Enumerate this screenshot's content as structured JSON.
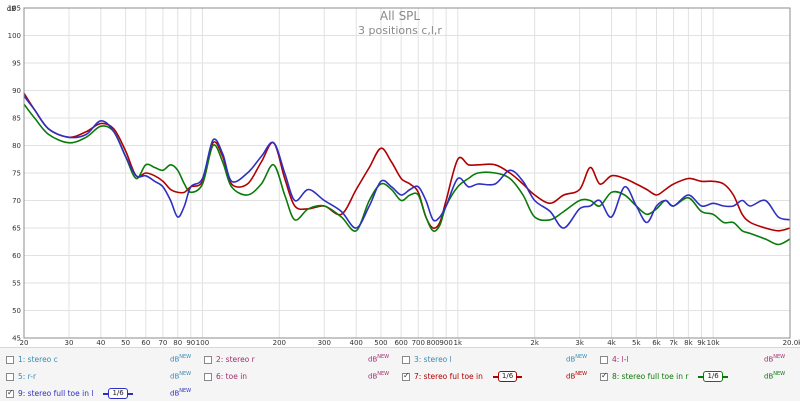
{
  "chart_data": {
    "type": "line",
    "title": "All SPL",
    "subtitle": "3 positions c,l,r",
    "ylabel": "dB",
    "xlabel_unit": "Hz",
    "x_scale": "log",
    "xlim": [
      20,
      20000
    ],
    "ylim": [
      45,
      105
    ],
    "y_ticks": [
      45,
      50,
      55,
      60,
      65,
      70,
      75,
      80,
      85,
      90,
      95,
      100,
      105
    ],
    "x_ticks": [
      {
        "v": 20,
        "label": "20"
      },
      {
        "v": 30,
        "label": "30"
      },
      {
        "v": 40,
        "label": "40"
      },
      {
        "v": 50,
        "label": "50"
      },
      {
        "v": 60,
        "label": "60"
      },
      {
        "v": 70,
        "label": "70"
      },
      {
        "v": 80,
        "label": "80"
      },
      {
        "v": 90,
        "label": "90"
      },
      {
        "v": 100,
        "label": "100"
      },
      {
        "v": 200,
        "label": "200"
      },
      {
        "v": 300,
        "label": "300"
      },
      {
        "v": 400,
        "label": "400"
      },
      {
        "v": 500,
        "label": "500"
      },
      {
        "v": 600,
        "label": "600"
      },
      {
        "v": 700,
        "label": "700"
      },
      {
        "v": 800,
        "label": "800"
      },
      {
        "v": 900,
        "label": "900"
      },
      {
        "v": 1000,
        "label": "1k"
      },
      {
        "v": 2000,
        "label": "2k"
      },
      {
        "v": 3000,
        "label": "3k"
      },
      {
        "v": 4000,
        "label": "4k"
      },
      {
        "v": 5000,
        "label": "5k"
      },
      {
        "v": 6000,
        "label": "6k"
      },
      {
        "v": 7000,
        "label": "7k"
      },
      {
        "v": 8000,
        "label": "8k"
      },
      {
        "v": 9000,
        "label": "9k"
      },
      {
        "v": 10000,
        "label": "10k"
      },
      {
        "v": 20000,
        "label": "20.0k Hz"
      }
    ],
    "grid": true,
    "series": [
      {
        "name": "7: stereo ful toe in",
        "color": "#b00000",
        "points": [
          [
            20,
            89.5
          ],
          [
            22,
            86.5
          ],
          [
            25,
            83
          ],
          [
            30,
            81.5
          ],
          [
            35,
            82.5
          ],
          [
            40,
            84
          ],
          [
            45,
            83
          ],
          [
            50,
            79
          ],
          [
            55,
            74.5
          ],
          [
            60,
            75
          ],
          [
            65,
            74.5
          ],
          [
            70,
            73.5
          ],
          [
            75,
            72
          ],
          [
            80,
            71.5
          ],
          [
            85,
            71.5
          ],
          [
            90,
            72.5
          ],
          [
            100,
            73.5
          ],
          [
            110,
            80.5
          ],
          [
            120,
            78
          ],
          [
            130,
            73
          ],
          [
            150,
            73
          ],
          [
            170,
            77
          ],
          [
            190,
            80.5
          ],
          [
            210,
            74
          ],
          [
            230,
            69
          ],
          [
            260,
            68.5
          ],
          [
            300,
            69
          ],
          [
            350,
            67.5
          ],
          [
            400,
            72
          ],
          [
            450,
            76
          ],
          [
            500,
            79.5
          ],
          [
            550,
            77
          ],
          [
            600,
            74
          ],
          [
            650,
            73
          ],
          [
            700,
            71.5
          ],
          [
            750,
            67
          ],
          [
            800,
            65
          ],
          [
            850,
            66
          ],
          [
            900,
            70
          ],
          [
            1000,
            77.5
          ],
          [
            1100,
            76.5
          ],
          [
            1200,
            76.5
          ],
          [
            1400,
            76.5
          ],
          [
            1600,
            75
          ],
          [
            1800,
            73
          ],
          [
            2000,
            71
          ],
          [
            2300,
            69.5
          ],
          [
            2600,
            71
          ],
          [
            3000,
            72
          ],
          [
            3300,
            76
          ],
          [
            3600,
            73
          ],
          [
            4000,
            74.5
          ],
          [
            4500,
            74
          ],
          [
            5000,
            73
          ],
          [
            5500,
            72
          ],
          [
            6000,
            71
          ],
          [
            6500,
            72
          ],
          [
            7000,
            73
          ],
          [
            8000,
            74
          ],
          [
            9000,
            73.5
          ],
          [
            10000,
            73.5
          ],
          [
            11000,
            73
          ],
          [
            12000,
            71
          ],
          [
            13000,
            67.5
          ],
          [
            14000,
            66
          ],
          [
            16000,
            65
          ],
          [
            18000,
            64.5
          ],
          [
            20000,
            65
          ]
        ]
      },
      {
        "name": "8: stereo full toe in r",
        "color": "#0a7a0a",
        "points": [
          [
            20,
            87.5
          ],
          [
            22,
            85
          ],
          [
            25,
            82
          ],
          [
            30,
            80.5
          ],
          [
            35,
            81.5
          ],
          [
            40,
            83.5
          ],
          [
            45,
            82.5
          ],
          [
            50,
            78
          ],
          [
            55,
            74
          ],
          [
            60,
            76.5
          ],
          [
            65,
            76
          ],
          [
            70,
            75.5
          ],
          [
            75,
            76.5
          ],
          [
            80,
            75.5
          ],
          [
            85,
            73
          ],
          [
            90,
            71.5
          ],
          [
            100,
            73
          ],
          [
            110,
            80
          ],
          [
            120,
            77
          ],
          [
            130,
            72.5
          ],
          [
            150,
            71
          ],
          [
            170,
            73
          ],
          [
            190,
            76.5
          ],
          [
            210,
            71
          ],
          [
            230,
            66.5
          ],
          [
            260,
            68.5
          ],
          [
            300,
            69
          ],
          [
            350,
            67
          ],
          [
            400,
            64.5
          ],
          [
            450,
            70
          ],
          [
            500,
            73
          ],
          [
            550,
            72
          ],
          [
            600,
            70
          ],
          [
            650,
            71
          ],
          [
            700,
            71
          ],
          [
            750,
            67
          ],
          [
            800,
            64.5
          ],
          [
            850,
            65.5
          ],
          [
            900,
            69
          ],
          [
            1000,
            72.5
          ],
          [
            1100,
            74
          ],
          [
            1200,
            75
          ],
          [
            1400,
            75
          ],
          [
            1600,
            74
          ],
          [
            1800,
            71
          ],
          [
            2000,
            67
          ],
          [
            2300,
            66.5
          ],
          [
            2600,
            68
          ],
          [
            3000,
            70
          ],
          [
            3300,
            70
          ],
          [
            3600,
            69
          ],
          [
            4000,
            71.5
          ],
          [
            4500,
            71
          ],
          [
            5000,
            69
          ],
          [
            5500,
            67.5
          ],
          [
            6000,
            68.5
          ],
          [
            6500,
            70
          ],
          [
            7000,
            69
          ],
          [
            8000,
            70.5
          ],
          [
            9000,
            68
          ],
          [
            10000,
            67.5
          ],
          [
            11000,
            66
          ],
          [
            12000,
            66
          ],
          [
            13000,
            64.5
          ],
          [
            14000,
            64
          ],
          [
            16000,
            63
          ],
          [
            18000,
            62
          ],
          [
            20000,
            63
          ]
        ]
      },
      {
        "name": "9: stereo full toe in l",
        "color": "#3030c0",
        "points": [
          [
            20,
            89
          ],
          [
            22,
            86.5
          ],
          [
            25,
            83
          ],
          [
            30,
            81.5
          ],
          [
            35,
            82
          ],
          [
            40,
            84.5
          ],
          [
            45,
            82.5
          ],
          [
            50,
            78
          ],
          [
            55,
            74.5
          ],
          [
            60,
            74.5
          ],
          [
            65,
            73.5
          ],
          [
            70,
            72.5
          ],
          [
            75,
            70
          ],
          [
            80,
            67
          ],
          [
            85,
            69
          ],
          [
            90,
            72.5
          ],
          [
            100,
            74
          ],
          [
            110,
            81
          ],
          [
            120,
            78.5
          ],
          [
            130,
            73.5
          ],
          [
            150,
            75
          ],
          [
            170,
            78
          ],
          [
            190,
            80.5
          ],
          [
            210,
            75
          ],
          [
            230,
            70
          ],
          [
            260,
            72
          ],
          [
            300,
            70
          ],
          [
            350,
            68
          ],
          [
            400,
            65
          ],
          [
            450,
            69
          ],
          [
            500,
            73.5
          ],
          [
            550,
            72.5
          ],
          [
            600,
            71
          ],
          [
            650,
            72
          ],
          [
            700,
            72.5
          ],
          [
            750,
            70
          ],
          [
            800,
            66.5
          ],
          [
            850,
            67
          ],
          [
            900,
            69
          ],
          [
            1000,
            74
          ],
          [
            1100,
            72.5
          ],
          [
            1200,
            73
          ],
          [
            1400,
            73
          ],
          [
            1600,
            75.5
          ],
          [
            1800,
            73.5
          ],
          [
            2000,
            70
          ],
          [
            2300,
            68
          ],
          [
            2600,
            65
          ],
          [
            3000,
            68.5
          ],
          [
            3300,
            69
          ],
          [
            3600,
            70
          ],
          [
            4000,
            67
          ],
          [
            4500,
            72.5
          ],
          [
            5000,
            69
          ],
          [
            5500,
            66
          ],
          [
            6000,
            69
          ],
          [
            6500,
            70
          ],
          [
            7000,
            69
          ],
          [
            8000,
            71
          ],
          [
            9000,
            69
          ],
          [
            10000,
            69.5
          ],
          [
            11000,
            69
          ],
          [
            12000,
            69
          ],
          [
            13000,
            70
          ],
          [
            14000,
            69
          ],
          [
            16000,
            70
          ],
          [
            18000,
            67
          ],
          [
            20000,
            66.5
          ]
        ]
      }
    ]
  },
  "legend": {
    "rows": [
      [
        {
          "id": "1",
          "label": "1: stereo c",
          "checked": false,
          "color": "#3a8ab0",
          "dbnew": "dB",
          "smoothing": null
        },
        {
          "id": "2",
          "label": "2: stereo r",
          "checked": false,
          "color": "#a03070",
          "dbnew": "dB",
          "smoothing": null
        },
        {
          "id": "3",
          "label": "3: stereo l",
          "checked": false,
          "color": "#3a8ab0",
          "dbnew": "dB",
          "smoothing": null
        },
        {
          "id": "4",
          "label": "4: l-l",
          "checked": false,
          "color": "#a03070",
          "dbnew": "dB",
          "smoothing": null
        }
      ],
      [
        {
          "id": "5",
          "label": "5: r-r",
          "checked": false,
          "color": "#3a8ab0",
          "dbnew": "dB",
          "smoothing": null
        },
        {
          "id": "6",
          "label": "6: toe in",
          "checked": false,
          "color": "#a03070",
          "dbnew": "dB",
          "smoothing": null
        },
        {
          "id": "7",
          "label": "7: stereo ful toe in",
          "checked": true,
          "color": "#b00000",
          "dbnew": "dB",
          "smoothing": "1/6"
        },
        {
          "id": "8",
          "label": "8: stereo full toe in r",
          "checked": true,
          "color": "#0a7a0a",
          "dbnew": "dB",
          "smoothing": "1/6"
        }
      ],
      [
        {
          "id": "9",
          "label": "9: stereo full toe in l",
          "checked": true,
          "color": "#3030c0",
          "dbnew": "dB",
          "smoothing": "1/6"
        }
      ]
    ],
    "dbnew_sup": "NEW"
  }
}
